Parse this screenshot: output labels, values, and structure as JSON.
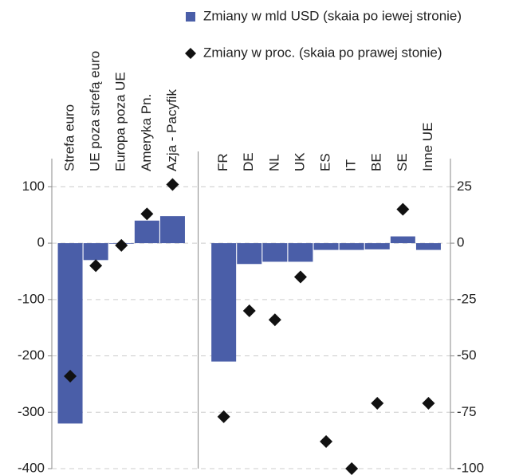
{
  "chart_data": {
    "type": "bar_dot",
    "categories": [
      "Strefa euro",
      "UE poza strefą euro",
      "Europa poza UE",
      "Ameryka Pn.",
      "Azja - Pacyfik",
      "FR",
      "DE",
      "NL",
      "UK",
      "ES",
      "IT",
      "BE",
      "SE",
      "Inne UE"
    ],
    "series": [
      {
        "name": "Zmiany w mld USD (skaia po iewej stronie)",
        "color": "#4a5ea8",
        "values": [
          -320,
          -30,
          -1,
          40,
          48,
          -210,
          -37,
          -33,
          -33,
          -12,
          -12,
          -11,
          12,
          -12
        ]
      },
      {
        "name": "Zmiany w proc. (skaia po prawej stonie)",
        "color": "#111111",
        "axis": "y2",
        "values": [
          -59,
          -10,
          -1,
          13,
          26,
          -77,
          -30,
          -34,
          -15,
          -88,
          -100,
          -71,
          15,
          -71
        ]
      }
    ],
    "ylim": [
      -400,
      150
    ],
    "yticks": [
      -400,
      -300,
      -200,
      -100,
      0,
      100
    ],
    "y2lim": [
      -100,
      37.5
    ],
    "y2ticks": [
      -100,
      -75,
      -50,
      -25,
      0,
      25
    ],
    "grid": true
  }
}
